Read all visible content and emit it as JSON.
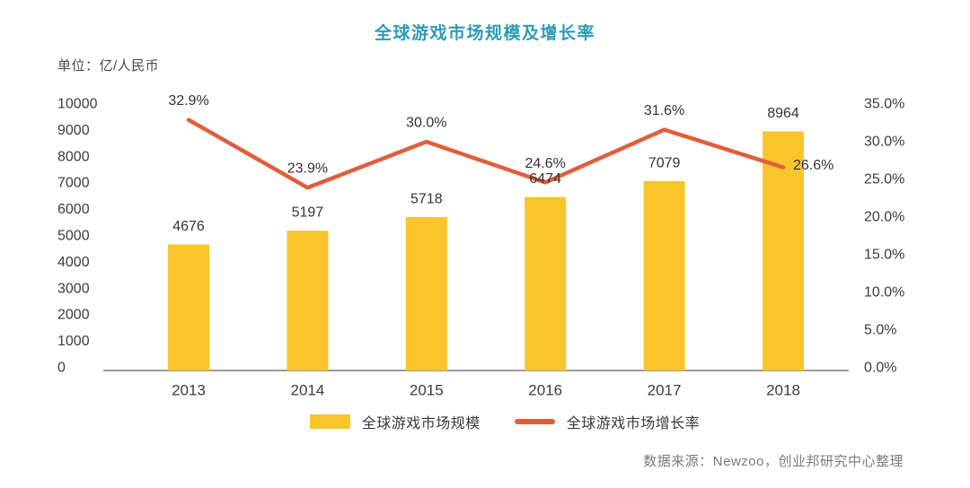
{
  "chart_data": {
    "type": "bar+line",
    "title": "全球游戏市场规模及增长率",
    "title_color": "#2E9BB5",
    "unit_label": "单位：亿/人民币",
    "categories": [
      "2013",
      "2014",
      "2015",
      "2016",
      "2017",
      "2018"
    ],
    "series": [
      {
        "name": "全球游戏市场规模",
        "type": "bar",
        "axis": "left",
        "color": "#F9C52B",
        "values": [
          4676,
          5197,
          5718,
          6474,
          7079,
          8964
        ],
        "data_labels": [
          "4676",
          "5197",
          "5718",
          "6474",
          "7079",
          "8964"
        ]
      },
      {
        "name": "全球游戏市场增长率",
        "type": "line",
        "axis": "right",
        "color": "#E05F3B",
        "values": [
          32.9,
          23.9,
          30.0,
          24.6,
          31.6,
          26.6
        ],
        "data_labels": [
          "32.9%",
          "23.9%",
          "30.0%",
          "24.6%",
          "31.6%",
          "26.6%"
        ]
      }
    ],
    "left_axis": {
      "min": 0,
      "max": 10000,
      "step": 1000,
      "ticks": [
        "10000",
        "9000",
        "8000",
        "7000",
        "6000",
        "5000",
        "4000",
        "3000",
        "2000",
        "1000",
        "0"
      ]
    },
    "right_axis": {
      "min": 0,
      "max": 35,
      "step": 5,
      "ticks": [
        "35.0%",
        "30.0%",
        "25.0%",
        "20.0%",
        "15.0%",
        "10.0%",
        "5.0%",
        "0.0%"
      ]
    },
    "grid": false,
    "legend_position": "bottom",
    "axis_line_color": "#9b9b9b",
    "tick_text_color": "#3c3c3c",
    "data_label_color": "#333333",
    "source": "数据来源：Newzoo，创业邦研究中心整理"
  }
}
